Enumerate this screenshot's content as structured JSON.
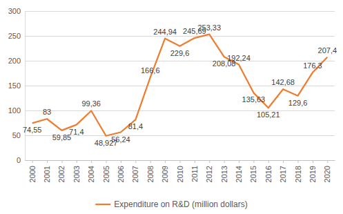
{
  "chart_data": {
    "type": "line",
    "categories": [
      "2000",
      "2001",
      "2002",
      "2003",
      "2004",
      "2005",
      "2006",
      "2007",
      "2008",
      "2009",
      "2010",
      "2011",
      "2012",
      "2013",
      "2014",
      "2015",
      "2016",
      "2017",
      "2018",
      "2019",
      "2020"
    ],
    "series": [
      {
        "name": "Expenditure on R&D (million dollars)",
        "color": "#ed7d31",
        "values": [
          74.55,
          83,
          59.85,
          71.4,
          99.36,
          48.927,
          56.24,
          81.4,
          166.6,
          244.94,
          229.6,
          245.69,
          253.33,
          208.08,
          192.24,
          135.63,
          105.21,
          142.68,
          129.6,
          176.3,
          207.4
        ],
        "value_labels": [
          "74,55",
          "83",
          "59,85",
          "71,4",
          "99,36",
          "48,927",
          "56,24",
          "81,4",
          "166,6",
          "244,94",
          "229,6",
          "245,69",
          "253,33",
          "208,08",
          "192,24",
          "135,63",
          "105,21",
          "142,68",
          "129,6",
          "176,3",
          "207,4"
        ]
      }
    ],
    "ylim": [
      0,
      300
    ],
    "yticks": [
      0,
      50,
      100,
      150,
      200,
      250,
      300
    ],
    "grid": true,
    "legend": "bottom",
    "data_labels": true
  }
}
